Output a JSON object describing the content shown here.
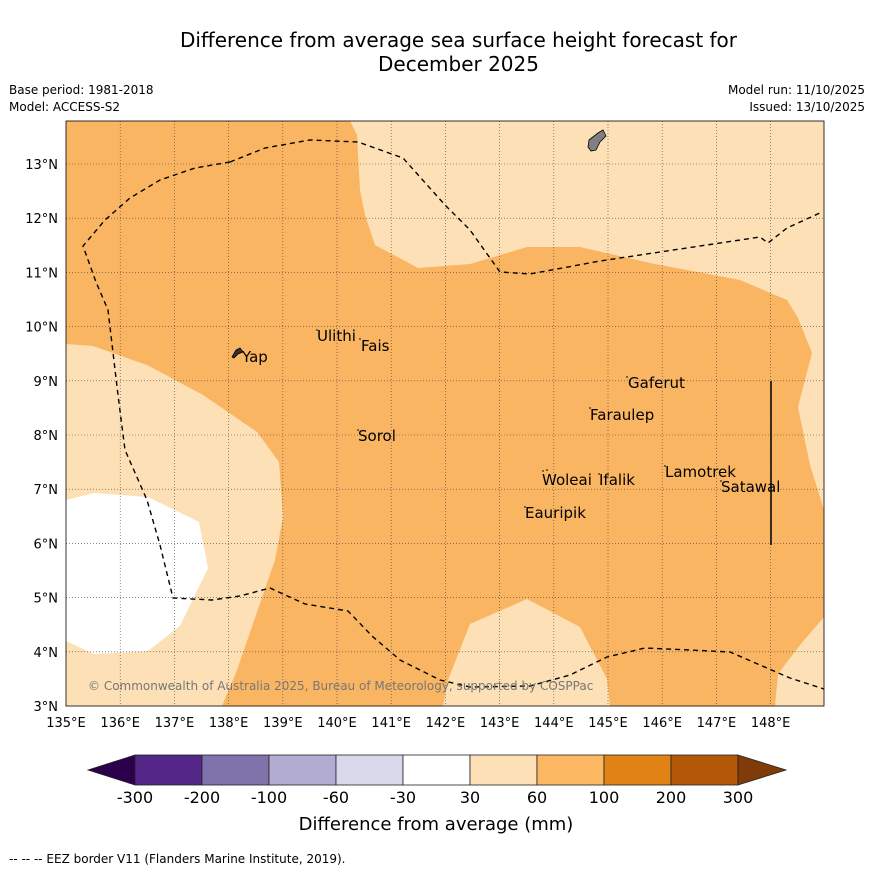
{
  "title_line1": "Difference from average sea surface height forecast for",
  "title_line2": "December 2025",
  "meta_left": [
    "Base period: 1981-2018",
    "Model: ACCESS-S2"
  ],
  "meta_right": [
    "Model run: 11/10/2025",
    "Issued: 13/10/2025"
  ],
  "map": {
    "lon_labels": [
      "135°E",
      "136°E",
      "137°E",
      "138°E",
      "139°E",
      "140°E",
      "141°E",
      "142°E",
      "143°E",
      "144°E",
      "145°E",
      "146°E",
      "147°E",
      "148°E"
    ],
    "lat_labels": [
      "3°N",
      "4°N",
      "5°N",
      "6°N",
      "7°N",
      "8°N",
      "9°N",
      "10°N",
      "11°N",
      "12°N",
      "13°N"
    ],
    "places": [
      "Ulithi",
      "Yap",
      "Fais",
      "Sorol",
      "Gaferut",
      "Faraulep",
      "Woleai",
      "Ifalik",
      "Lamotrek",
      "Satawal",
      "Eauripik"
    ],
    "copyright": "© Commonwealth of Australia 2025, Bureau of Meteorology, supported by COSPPac",
    "colors": {
      "band_30_60": "#fde0b6",
      "band_60_100": "#fab562",
      "land": "#808080",
      "background": "#ffffff"
    }
  },
  "colorbar": {
    "ticks": [
      "-300",
      "-200",
      "-100",
      "-60",
      "-30",
      "30",
      "60",
      "100",
      "200",
      "300"
    ],
    "label": "Difference from average (mm)",
    "colors": [
      "#2d004b",
      "#542788",
      "#8073ac",
      "#b2abd2",
      "#d8daeb",
      "#ffffff",
      "#fee0b6",
      "#fdb863",
      "#e08214",
      "#b35806",
      "#7f3b08"
    ]
  },
  "footer": "--  --  -- EEZ border V11 (Flanders Marine Institute, 2019)."
}
